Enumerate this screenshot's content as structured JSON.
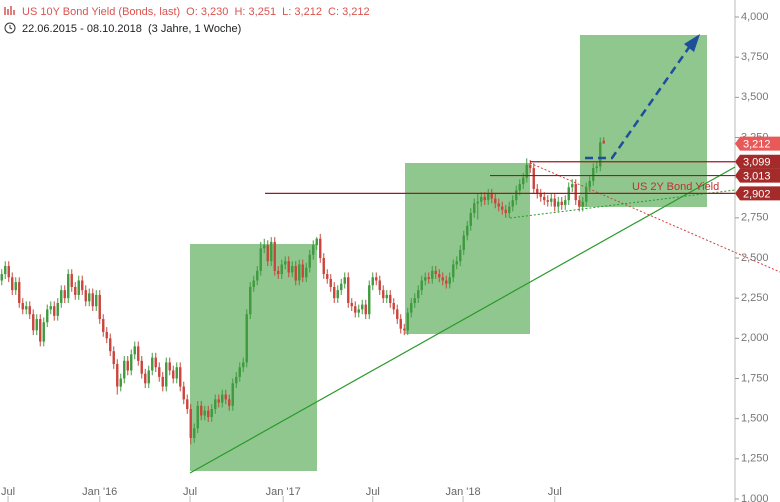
{
  "chart_data": {
    "type": "candlestick",
    "title": "US 10Y Bond Yield (Bonds, last)",
    "ohlc_label": "O: 3,230  H: 3,251  L: 3,212  C: 3,212",
    "subtitle": "22.06.2015 - 08.10.2018  (3 Jahre, 1 Woche)",
    "annotation": "US 2Y Bond Yield",
    "up_color": "#3f9a3f",
    "down_color": "#c9453c",
    "xlim": [
      -0.5,
      209.5
    ],
    "xticks": [
      {
        "value": 1.8,
        "label": "Jul"
      },
      {
        "value": 28,
        "label": "Jan '16"
      },
      {
        "value": 53.8,
        "label": "Jul"
      },
      {
        "value": 80.4,
        "label": "Jan '17"
      },
      {
        "value": 106,
        "label": "Jul"
      },
      {
        "value": 131.8,
        "label": "Jan '18"
      },
      {
        "value": 158,
        "label": "Jul"
      }
    ],
    "ylim": [
      1,
      4
    ],
    "yticks": [
      {
        "value": 1,
        "label": "1,000"
      },
      {
        "value": 1.25,
        "label": "1,250"
      },
      {
        "value": 1.5,
        "label": "1,500"
      },
      {
        "value": 1.75,
        "label": "1,750"
      },
      {
        "value": 2,
        "label": "2,000"
      },
      {
        "value": 2.25,
        "label": "2,250"
      },
      {
        "value": 2.5,
        "label": "2,500"
      },
      {
        "value": 2.75,
        "label": "2,750"
      },
      {
        "value": 3,
        "label": "3,000"
      },
      {
        "value": 3.25,
        "label": "3,250"
      },
      {
        "value": 3.5,
        "label": "3,500"
      },
      {
        "value": 3.75,
        "label": "3,750"
      },
      {
        "value": 4,
        "label": "4,000"
      }
    ],
    "levels": [
      {
        "value": 3.099,
        "label": "3,099"
      },
      {
        "value": 3.013,
        "label": "3,013"
      },
      {
        "value": 2.902,
        "label": "2,902"
      }
    ],
    "last": {
      "value": 3.212,
      "label": "3,212"
    },
    "candles": [
      [
        2.36,
        2.43,
        2.33,
        2.4
      ],
      [
        2.4,
        2.48,
        2.37,
        2.45
      ],
      [
        2.45,
        2.48,
        2.35,
        2.38
      ],
      [
        2.38,
        2.41,
        2.27,
        2.3
      ],
      [
        2.3,
        2.38,
        2.27,
        2.35
      ],
      [
        2.35,
        2.38,
        2.19,
        2.22
      ],
      [
        2.22,
        2.25,
        2.15,
        2.18
      ],
      [
        2.18,
        2.23,
        2.15,
        2.2
      ],
      [
        2.2,
        2.23,
        2.12,
        2.15
      ],
      [
        2.15,
        2.18,
        2.02,
        2.05
      ],
      [
        2.05,
        2.15,
        2.02,
        2.12
      ],
      [
        2.12,
        2.15,
        1.95,
        1.98
      ],
      [
        1.98,
        2.13,
        1.95,
        2.1
      ],
      [
        2.1,
        2.21,
        2.07,
        2.18
      ],
      [
        2.18,
        2.23,
        2.15,
        2.2
      ],
      [
        2.2,
        2.23,
        2.11,
        2.14
      ],
      [
        2.14,
        2.25,
        2.11,
        2.22
      ],
      [
        2.22,
        2.33,
        2.19,
        2.3
      ],
      [
        2.3,
        2.33,
        2.22,
        2.25
      ],
      [
        2.25,
        2.43,
        2.22,
        2.4
      ],
      [
        2.4,
        2.43,
        2.29,
        2.32
      ],
      [
        2.32,
        2.35,
        2.24,
        2.27
      ],
      [
        2.27,
        2.39,
        2.24,
        2.36
      ],
      [
        2.36,
        2.39,
        2.27,
        2.3
      ],
      [
        2.3,
        2.33,
        2.2,
        2.23
      ],
      [
        2.23,
        2.31,
        2.2,
        2.28
      ],
      [
        2.28,
        2.31,
        2.17,
        2.2
      ],
      [
        2.2,
        2.3,
        2.17,
        2.27
      ],
      [
        2.27,
        2.3,
        2.09,
        2.12
      ],
      [
        2.12,
        2.15,
        2.01,
        2.04
      ],
      [
        2.04,
        2.07,
        1.97,
        2.0
      ],
      [
        2.0,
        2.03,
        1.89,
        1.92
      ],
      [
        1.92,
        1.95,
        1.81,
        1.84
      ],
      [
        1.84,
        1.87,
        1.65,
        1.7
      ],
      [
        1.7,
        1.78,
        1.67,
        1.75
      ],
      [
        1.75,
        1.89,
        1.72,
        1.86
      ],
      [
        1.86,
        1.89,
        1.77,
        1.8
      ],
      [
        1.8,
        1.93,
        1.77,
        1.9
      ],
      [
        1.9,
        1.98,
        1.87,
        1.95
      ],
      [
        1.95,
        1.98,
        1.83,
        1.86
      ],
      [
        1.86,
        1.89,
        1.75,
        1.78
      ],
      [
        1.78,
        1.81,
        1.69,
        1.72
      ],
      [
        1.72,
        1.83,
        1.69,
        1.8
      ],
      [
        1.8,
        1.91,
        1.77,
        1.88
      ],
      [
        1.88,
        1.91,
        1.79,
        1.82
      ],
      [
        1.82,
        1.85,
        1.73,
        1.76
      ],
      [
        1.76,
        1.79,
        1.67,
        1.7
      ],
      [
        1.7,
        1.88,
        1.67,
        1.85
      ],
      [
        1.85,
        1.88,
        1.77,
        1.8
      ],
      [
        1.8,
        1.83,
        1.72,
        1.75
      ],
      [
        1.75,
        1.85,
        1.72,
        1.82
      ],
      [
        1.82,
        1.85,
        1.67,
        1.7
      ],
      [
        1.7,
        1.73,
        1.59,
        1.62
      ],
      [
        1.62,
        1.65,
        1.53,
        1.56
      ],
      [
        1.56,
        1.59,
        1.34,
        1.38
      ],
      [
        1.38,
        1.47,
        1.35,
        1.44
      ],
      [
        1.44,
        1.61,
        1.41,
        1.58
      ],
      [
        1.58,
        1.61,
        1.49,
        1.52
      ],
      [
        1.52,
        1.58,
        1.49,
        1.55
      ],
      [
        1.55,
        1.58,
        1.48,
        1.51
      ],
      [
        1.51,
        1.59,
        1.48,
        1.56
      ],
      [
        1.56,
        1.65,
        1.53,
        1.62
      ],
      [
        1.62,
        1.65,
        1.57,
        1.6
      ],
      [
        1.6,
        1.68,
        1.57,
        1.65
      ],
      [
        1.65,
        1.68,
        1.59,
        1.62
      ],
      [
        1.62,
        1.65,
        1.55,
        1.58
      ],
      [
        1.58,
        1.75,
        1.55,
        1.72
      ],
      [
        1.72,
        1.79,
        1.69,
        1.76
      ],
      [
        1.76,
        1.85,
        1.73,
        1.82
      ],
      [
        1.82,
        1.88,
        1.79,
        1.85
      ],
      [
        1.85,
        2.18,
        1.82,
        2.15
      ],
      [
        2.15,
        2.35,
        2.12,
        2.32
      ],
      [
        2.32,
        2.39,
        2.29,
        2.36
      ],
      [
        2.36,
        2.45,
        2.33,
        2.42
      ],
      [
        2.42,
        2.6,
        2.39,
        2.56
      ],
      [
        2.56,
        2.62,
        2.53,
        2.58
      ],
      [
        2.58,
        2.61,
        2.45,
        2.48
      ],
      [
        2.48,
        2.63,
        2.45,
        2.6
      ],
      [
        2.6,
        2.63,
        2.39,
        2.42
      ],
      [
        2.42,
        2.45,
        2.37,
        2.4
      ],
      [
        2.4,
        2.49,
        2.37,
        2.46
      ],
      [
        2.46,
        2.51,
        2.43,
        2.48
      ],
      [
        2.48,
        2.51,
        2.38,
        2.41
      ],
      [
        2.41,
        2.48,
        2.38,
        2.45
      ],
      [
        2.45,
        2.48,
        2.33,
        2.36
      ],
      [
        2.36,
        2.49,
        2.33,
        2.46
      ],
      [
        2.46,
        2.49,
        2.35,
        2.38
      ],
      [
        2.38,
        2.47,
        2.35,
        2.44
      ],
      [
        2.44,
        2.55,
        2.41,
        2.52
      ],
      [
        2.52,
        2.61,
        2.49,
        2.58
      ],
      [
        2.58,
        2.63,
        2.55,
        2.62
      ],
      [
        2.62,
        2.65,
        2.47,
        2.5
      ],
      [
        2.5,
        2.53,
        2.37,
        2.4
      ],
      [
        2.4,
        2.43,
        2.34,
        2.37
      ],
      [
        2.37,
        2.4,
        2.29,
        2.32
      ],
      [
        2.32,
        2.35,
        2.22,
        2.25
      ],
      [
        2.25,
        2.33,
        2.22,
        2.3
      ],
      [
        2.3,
        2.37,
        2.27,
        2.34
      ],
      [
        2.34,
        2.41,
        2.31,
        2.38
      ],
      [
        2.38,
        2.41,
        2.19,
        2.22
      ],
      [
        2.22,
        2.25,
        2.17,
        2.2
      ],
      [
        2.2,
        2.23,
        2.13,
        2.16
      ],
      [
        2.16,
        2.21,
        2.13,
        2.18
      ],
      [
        2.18,
        2.24,
        2.15,
        2.21
      ],
      [
        2.21,
        2.24,
        2.12,
        2.15
      ],
      [
        2.15,
        2.36,
        2.12,
        2.33
      ],
      [
        2.33,
        2.41,
        2.3,
        2.38
      ],
      [
        2.38,
        2.41,
        2.33,
        2.36
      ],
      [
        2.36,
        2.39,
        2.27,
        2.3
      ],
      [
        2.3,
        2.33,
        2.22,
        2.25
      ],
      [
        2.25,
        2.3,
        2.22,
        2.27
      ],
      [
        2.27,
        2.3,
        2.19,
        2.22
      ],
      [
        2.22,
        2.25,
        2.15,
        2.18
      ],
      [
        2.18,
        2.21,
        2.09,
        2.12
      ],
      [
        2.12,
        2.15,
        2.03,
        2.06
      ],
      [
        2.06,
        2.09,
        2.02,
        2.05
      ],
      [
        2.05,
        2.19,
        2.02,
        2.16
      ],
      [
        2.16,
        2.25,
        2.13,
        2.22
      ],
      [
        2.22,
        2.28,
        2.19,
        2.25
      ],
      [
        2.25,
        2.33,
        2.22,
        2.3
      ],
      [
        2.3,
        2.39,
        2.27,
        2.36
      ],
      [
        2.36,
        2.41,
        2.33,
        2.38
      ],
      [
        2.38,
        2.41,
        2.34,
        2.37
      ],
      [
        2.37,
        2.45,
        2.34,
        2.42
      ],
      [
        2.42,
        2.45,
        2.37,
        2.4
      ],
      [
        2.4,
        2.43,
        2.35,
        2.38
      ],
      [
        2.38,
        2.41,
        2.33,
        2.36
      ],
      [
        2.36,
        2.39,
        2.31,
        2.34
      ],
      [
        2.34,
        2.41,
        2.31,
        2.38
      ],
      [
        2.38,
        2.49,
        2.35,
        2.46
      ],
      [
        2.46,
        2.51,
        2.43,
        2.48
      ],
      [
        2.48,
        2.58,
        2.45,
        2.55
      ],
      [
        2.55,
        2.67,
        2.52,
        2.64
      ],
      [
        2.64,
        2.73,
        2.61,
        2.7
      ],
      [
        2.7,
        2.81,
        2.67,
        2.78
      ],
      [
        2.78,
        2.87,
        2.75,
        2.84
      ],
      [
        2.84,
        2.9,
        2.74,
        2.85
      ],
      [
        2.85,
        2.91,
        2.82,
        2.88
      ],
      [
        2.88,
        2.91,
        2.83,
        2.86
      ],
      [
        2.86,
        2.93,
        2.83,
        2.9
      ],
      [
        2.9,
        2.93,
        2.84,
        2.87
      ],
      [
        2.87,
        2.9,
        2.81,
        2.84
      ],
      [
        2.84,
        2.87,
        2.79,
        2.82
      ],
      [
        2.82,
        2.85,
        2.77,
        2.8
      ],
      [
        2.8,
        2.83,
        2.75,
        2.78
      ],
      [
        2.78,
        2.85,
        2.75,
        2.82
      ],
      [
        2.82,
        2.89,
        2.79,
        2.86
      ],
      [
        2.86,
        2.95,
        2.83,
        2.92
      ],
      [
        2.92,
        2.99,
        2.89,
        2.96
      ],
      [
        2.96,
        3.03,
        2.93,
        3.0
      ],
      [
        3.0,
        3.12,
        2.97,
        3.08
      ],
      [
        3.08,
        3.11,
        3.03,
        3.06
      ],
      [
        3.06,
        3.09,
        2.9,
        2.93
      ],
      [
        2.93,
        2.96,
        2.87,
        2.9
      ],
      [
        2.9,
        2.93,
        2.85,
        2.88
      ],
      [
        2.88,
        2.91,
        2.83,
        2.86
      ],
      [
        2.86,
        2.89,
        2.82,
        2.85
      ],
      [
        2.85,
        2.9,
        2.82,
        2.87
      ],
      [
        2.87,
        2.9,
        2.79,
        2.82
      ],
      [
        2.82,
        2.88,
        2.79,
        2.85
      ],
      [
        2.85,
        2.88,
        2.8,
        2.83
      ],
      [
        2.83,
        2.89,
        2.8,
        2.86
      ],
      [
        2.86,
        2.97,
        2.83,
        2.94
      ],
      [
        2.94,
        2.99,
        2.91,
        2.96
      ],
      [
        2.96,
        2.99,
        2.83,
        2.86
      ],
      [
        2.86,
        2.89,
        2.79,
        2.82
      ],
      [
        2.82,
        2.88,
        2.79,
        2.85
      ],
      [
        2.85,
        2.97,
        2.82,
        2.94
      ],
      [
        2.94,
        3.01,
        2.91,
        2.98
      ],
      [
        2.98,
        3.09,
        2.95,
        3.06
      ],
      [
        3.06,
        3.1,
        3.03,
        3.07
      ],
      [
        3.07,
        3.25,
        3.04,
        3.22
      ],
      [
        3.23,
        3.251,
        3.212,
        3.212
      ]
    ]
  }
}
